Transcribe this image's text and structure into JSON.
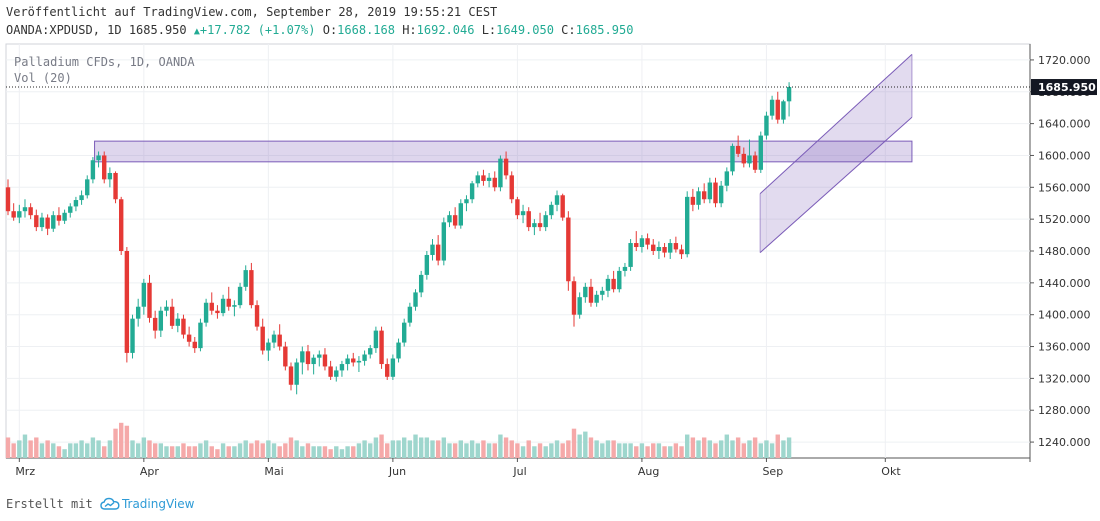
{
  "header": {
    "published": "Veröffentlicht auf TradingView.com, September 28, 2019 19:55:21 CEST",
    "symbol": "OANDA:XPDUSD, 1D",
    "last": "1685.950",
    "change": "+17.782 (+1.07%)",
    "o_label": "O:",
    "o_value": "1668.168",
    "h_label": "H:",
    "h_value": "1692.046",
    "l_label": "L:",
    "l_value": "1649.050",
    "c_label": "C:",
    "c_value": "1685.950"
  },
  "legend": {
    "series": "Palladium CFDs, 1D, OANDA",
    "volume": "Vol (20)"
  },
  "footer": {
    "created": "Erstellt mit",
    "brand": "TradingView"
  },
  "colors": {
    "up": "#22ab94",
    "down": "#e53935",
    "vol_up": "#9ed6cd",
    "vol_down": "#f5a9a9",
    "channel": "#7b5cb8"
  },
  "chart_data": {
    "type": "candlestick",
    "title": "Palladium CFDs, 1D, OANDA",
    "ylim": [
      1220,
      1740
    ],
    "y_ticks": [
      "1720.000",
      "1680.000",
      "1640.000",
      "1600.000",
      "1560.000",
      "1520.000",
      "1480.000",
      "1440.000",
      "1400.000",
      "1360.000",
      "1320.000",
      "1280.000",
      "1240.000"
    ],
    "x_ticks": [
      {
        "label": "Mrz",
        "index": 2
      },
      {
        "label": "Apr",
        "index": 24
      },
      {
        "label": "Mai",
        "index": 46
      },
      {
        "label": "Jun",
        "index": 68
      },
      {
        "label": "Jul",
        "index": 90
      },
      {
        "label": "Aug",
        "index": 112
      },
      {
        "label": "Sep",
        "index": 134
      },
      {
        "label": "Okt",
        "index": 155
      }
    ],
    "last_price": 1685.95,
    "last_price_label": "1685.950",
    "candles": [
      [
        1560,
        1570,
        1525,
        1530,
        7
      ],
      [
        1530,
        1540,
        1518,
        1522,
        5
      ],
      [
        1522,
        1538,
        1515,
        1530,
        6
      ],
      [
        1530,
        1545,
        1522,
        1535,
        8
      ],
      [
        1535,
        1540,
        1520,
        1525,
        6
      ],
      [
        1525,
        1532,
        1505,
        1510,
        7
      ],
      [
        1510,
        1528,
        1505,
        1522,
        5
      ],
      [
        1522,
        1526,
        1500,
        1508,
        6
      ],
      [
        1508,
        1530,
        1504,
        1525,
        5
      ],
      [
        1525,
        1535,
        1512,
        1518,
        4
      ],
      [
        1518,
        1532,
        1514,
        1528,
        3
      ],
      [
        1528,
        1540,
        1522,
        1536,
        5
      ],
      [
        1536,
        1548,
        1530,
        1544,
        5
      ],
      [
        1544,
        1556,
        1538,
        1550,
        6
      ],
      [
        1550,
        1575,
        1546,
        1570,
        5
      ],
      [
        1570,
        1598,
        1565,
        1594,
        7
      ],
      [
        1594,
        1605,
        1585,
        1600,
        6
      ],
      [
        1600,
        1605,
        1565,
        1570,
        4
      ],
      [
        1570,
        1585,
        1560,
        1578,
        6
      ],
      [
        1578,
        1580,
        1540,
        1545,
        10
      ],
      [
        1545,
        1548,
        1475,
        1480,
        12
      ],
      [
        1480,
        1485,
        1340,
        1352,
        11
      ],
      [
        1352,
        1400,
        1345,
        1395,
        6
      ],
      [
        1395,
        1420,
        1385,
        1410,
        5
      ],
      [
        1410,
        1445,
        1400,
        1440,
        7
      ],
      [
        1440,
        1450,
        1390,
        1396,
        6
      ],
      [
        1396,
        1405,
        1370,
        1380,
        5
      ],
      [
        1380,
        1410,
        1372,
        1405,
        5
      ],
      [
        1405,
        1418,
        1398,
        1410,
        4
      ],
      [
        1410,
        1420,
        1382,
        1386,
        4
      ],
      [
        1386,
        1402,
        1378,
        1395,
        4
      ],
      [
        1395,
        1400,
        1370,
        1375,
        5
      ],
      [
        1375,
        1385,
        1360,
        1366,
        4
      ],
      [
        1366,
        1372,
        1352,
        1358,
        4
      ],
      [
        1358,
        1395,
        1354,
        1390,
        5
      ],
      [
        1390,
        1420,
        1385,
        1415,
        6
      ],
      [
        1415,
        1428,
        1400,
        1405,
        4
      ],
      [
        1405,
        1412,
        1395,
        1402,
        3
      ],
      [
        1402,
        1425,
        1398,
        1420,
        5
      ],
      [
        1420,
        1435,
        1405,
        1410,
        4
      ],
      [
        1410,
        1418,
        1398,
        1412,
        4
      ],
      [
        1412,
        1440,
        1408,
        1435,
        5
      ],
      [
        1435,
        1462,
        1430,
        1456,
        6
      ],
      [
        1456,
        1465,
        1408,
        1412,
        5
      ],
      [
        1412,
        1418,
        1380,
        1385,
        6
      ],
      [
        1385,
        1395,
        1350,
        1355,
        5
      ],
      [
        1355,
        1370,
        1342,
        1365,
        6
      ],
      [
        1365,
        1380,
        1358,
        1375,
        5
      ],
      [
        1375,
        1388,
        1355,
        1360,
        4
      ],
      [
        1360,
        1366,
        1330,
        1335,
        5
      ],
      [
        1335,
        1340,
        1305,
        1312,
        7
      ],
      [
        1312,
        1345,
        1300,
        1340,
        6
      ],
      [
        1340,
        1360,
        1325,
        1354,
        4
      ],
      [
        1354,
        1362,
        1330,
        1338,
        5
      ],
      [
        1338,
        1350,
        1325,
        1346,
        4
      ],
      [
        1346,
        1355,
        1335,
        1350,
        4
      ],
      [
        1350,
        1358,
        1330,
        1335,
        4
      ],
      [
        1335,
        1342,
        1318,
        1322,
        3
      ],
      [
        1322,
        1335,
        1316,
        1330,
        4
      ],
      [
        1330,
        1342,
        1322,
        1338,
        3
      ],
      [
        1338,
        1350,
        1330,
        1345,
        4
      ],
      [
        1345,
        1352,
        1335,
        1340,
        4
      ],
      [
        1340,
        1348,
        1328,
        1342,
        5
      ],
      [
        1342,
        1355,
        1336,
        1350,
        6
      ],
      [
        1350,
        1362,
        1345,
        1358,
        5
      ],
      [
        1358,
        1385,
        1352,
        1380,
        7
      ],
      [
        1380,
        1385,
        1332,
        1338,
        8
      ],
      [
        1338,
        1345,
        1318,
        1322,
        5
      ],
      [
        1322,
        1350,
        1318,
        1345,
        6
      ],
      [
        1345,
        1370,
        1340,
        1365,
        6
      ],
      [
        1365,
        1395,
        1360,
        1390,
        7
      ],
      [
        1390,
        1415,
        1385,
        1410,
        6
      ],
      [
        1410,
        1432,
        1405,
        1428,
        8
      ],
      [
        1428,
        1455,
        1422,
        1450,
        7
      ],
      [
        1450,
        1480,
        1444,
        1475,
        7
      ],
      [
        1475,
        1495,
        1468,
        1488,
        6
      ],
      [
        1488,
        1500,
        1462,
        1468,
        6
      ],
      [
        1468,
        1522,
        1462,
        1516,
        7
      ],
      [
        1516,
        1530,
        1510,
        1525,
        5
      ],
      [
        1525,
        1535,
        1508,
        1512,
        5
      ],
      [
        1512,
        1545,
        1508,
        1540,
        6
      ],
      [
        1540,
        1550,
        1530,
        1545,
        5
      ],
      [
        1545,
        1568,
        1540,
        1565,
        6
      ],
      [
        1565,
        1580,
        1560,
        1575,
        5
      ],
      [
        1575,
        1582,
        1562,
        1568,
        6
      ],
      [
        1568,
        1578,
        1560,
        1572,
        5
      ],
      [
        1572,
        1580,
        1555,
        1560,
        5
      ],
      [
        1560,
        1600,
        1555,
        1596,
        8
      ],
      [
        1596,
        1605,
        1570,
        1575,
        7
      ],
      [
        1575,
        1580,
        1540,
        1545,
        6
      ],
      [
        1545,
        1548,
        1520,
        1525,
        5
      ],
      [
        1525,
        1538,
        1515,
        1530,
        4
      ],
      [
        1530,
        1535,
        1505,
        1510,
        6
      ],
      [
        1510,
        1520,
        1500,
        1515,
        4
      ],
      [
        1515,
        1528,
        1505,
        1510,
        5
      ],
      [
        1510,
        1530,
        1505,
        1525,
        4
      ],
      [
        1525,
        1542,
        1520,
        1538,
        5
      ],
      [
        1538,
        1556,
        1530,
        1550,
        6
      ],
      [
        1550,
        1552,
        1518,
        1522,
        5
      ],
      [
        1522,
        1530,
        1430,
        1442,
        6
      ],
      [
        1442,
        1448,
        1385,
        1400,
        10
      ],
      [
        1400,
        1428,
        1395,
        1422,
        8
      ],
      [
        1422,
        1440,
        1415,
        1435,
        9
      ],
      [
        1435,
        1445,
        1410,
        1415,
        7
      ],
      [
        1415,
        1430,
        1410,
        1425,
        6
      ],
      [
        1425,
        1435,
        1418,
        1430,
        5
      ],
      [
        1430,
        1450,
        1422,
        1445,
        6
      ],
      [
        1445,
        1455,
        1428,
        1432,
        6
      ],
      [
        1432,
        1460,
        1428,
        1455,
        5
      ],
      [
        1455,
        1465,
        1448,
        1460,
        5
      ],
      [
        1460,
        1495,
        1455,
        1490,
        5
      ],
      [
        1490,
        1505,
        1480,
        1485,
        4
      ],
      [
        1485,
        1500,
        1478,
        1496,
        5
      ],
      [
        1496,
        1502,
        1482,
        1488,
        4
      ],
      [
        1488,
        1495,
        1475,
        1480,
        5
      ],
      [
        1480,
        1492,
        1470,
        1485,
        5
      ],
      [
        1485,
        1490,
        1472,
        1478,
        4
      ],
      [
        1478,
        1495,
        1470,
        1490,
        4
      ],
      [
        1490,
        1498,
        1478,
        1482,
        5
      ],
      [
        1482,
        1488,
        1470,
        1476,
        4
      ],
      [
        1476,
        1555,
        1472,
        1548,
        8
      ],
      [
        1548,
        1558,
        1530,
        1538,
        7
      ],
      [
        1538,
        1560,
        1532,
        1555,
        6
      ],
      [
        1555,
        1565,
        1540,
        1545,
        7
      ],
      [
        1545,
        1572,
        1540,
        1566,
        6
      ],
      [
        1566,
        1572,
        1535,
        1540,
        5
      ],
      [
        1540,
        1568,
        1535,
        1562,
        6
      ],
      [
        1562,
        1585,
        1555,
        1580,
        8
      ],
      [
        1580,
        1615,
        1575,
        1612,
        6
      ],
      [
        1612,
        1625,
        1598,
        1602,
        7
      ],
      [
        1602,
        1610,
        1585,
        1590,
        5
      ],
      [
        1590,
        1620,
        1585,
        1600,
        6
      ],
      [
        1600,
        1605,
        1578,
        1582,
        7
      ],
      [
        1582,
        1630,
        1578,
        1625,
        5
      ],
      [
        1625,
        1655,
        1620,
        1650,
        6
      ],
      [
        1650,
        1675,
        1645,
        1670,
        5
      ],
      [
        1670,
        1680,
        1640,
        1645,
        8
      ],
      [
        1645,
        1670,
        1640,
        1668,
        6
      ],
      [
        1668,
        1692,
        1649,
        1685.95,
        7
      ]
    ],
    "vol_ylim": [
      0,
      30
    ],
    "shapes": [
      {
        "type": "horizontal-zone",
        "from_index": 16,
        "to_index": 159,
        "y_top": 1618,
        "y_bottom": 1592
      },
      {
        "type": "parallel-channel",
        "from_index": 132,
        "to_index": 159,
        "lower_start": 1478,
        "lower_end": 1648,
        "upper_start": 1552,
        "upper_end": 1727
      }
    ]
  }
}
